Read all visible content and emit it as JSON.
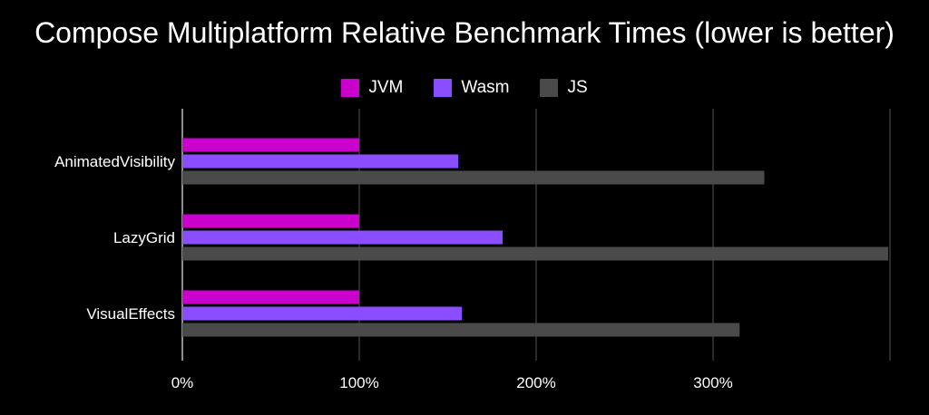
{
  "chart_data": {
    "type": "bar",
    "orientation": "horizontal",
    "title": "Compose Multiplatform Relative Benchmark Times (lower is better)",
    "categories": [
      "AnimatedVisibility",
      "LazyGrid",
      "VisualEffects"
    ],
    "series": [
      {
        "name": "JVM",
        "color": "#cc00cc",
        "values": [
          100,
          100,
          100
        ]
      },
      {
        "name": "Wasm",
        "color": "#8a4dff",
        "values": [
          156,
          181,
          158
        ]
      },
      {
        "name": "JS",
        "color": "#4a4a4a",
        "values": [
          329,
          399,
          315
        ]
      }
    ],
    "xticks": [
      0,
      100,
      200,
      300
    ],
    "xtick_labels": [
      "0%",
      "100%",
      "200%",
      "300%"
    ],
    "xlim": [
      0,
      400
    ],
    "grid": true,
    "legend_position": "top-center"
  }
}
